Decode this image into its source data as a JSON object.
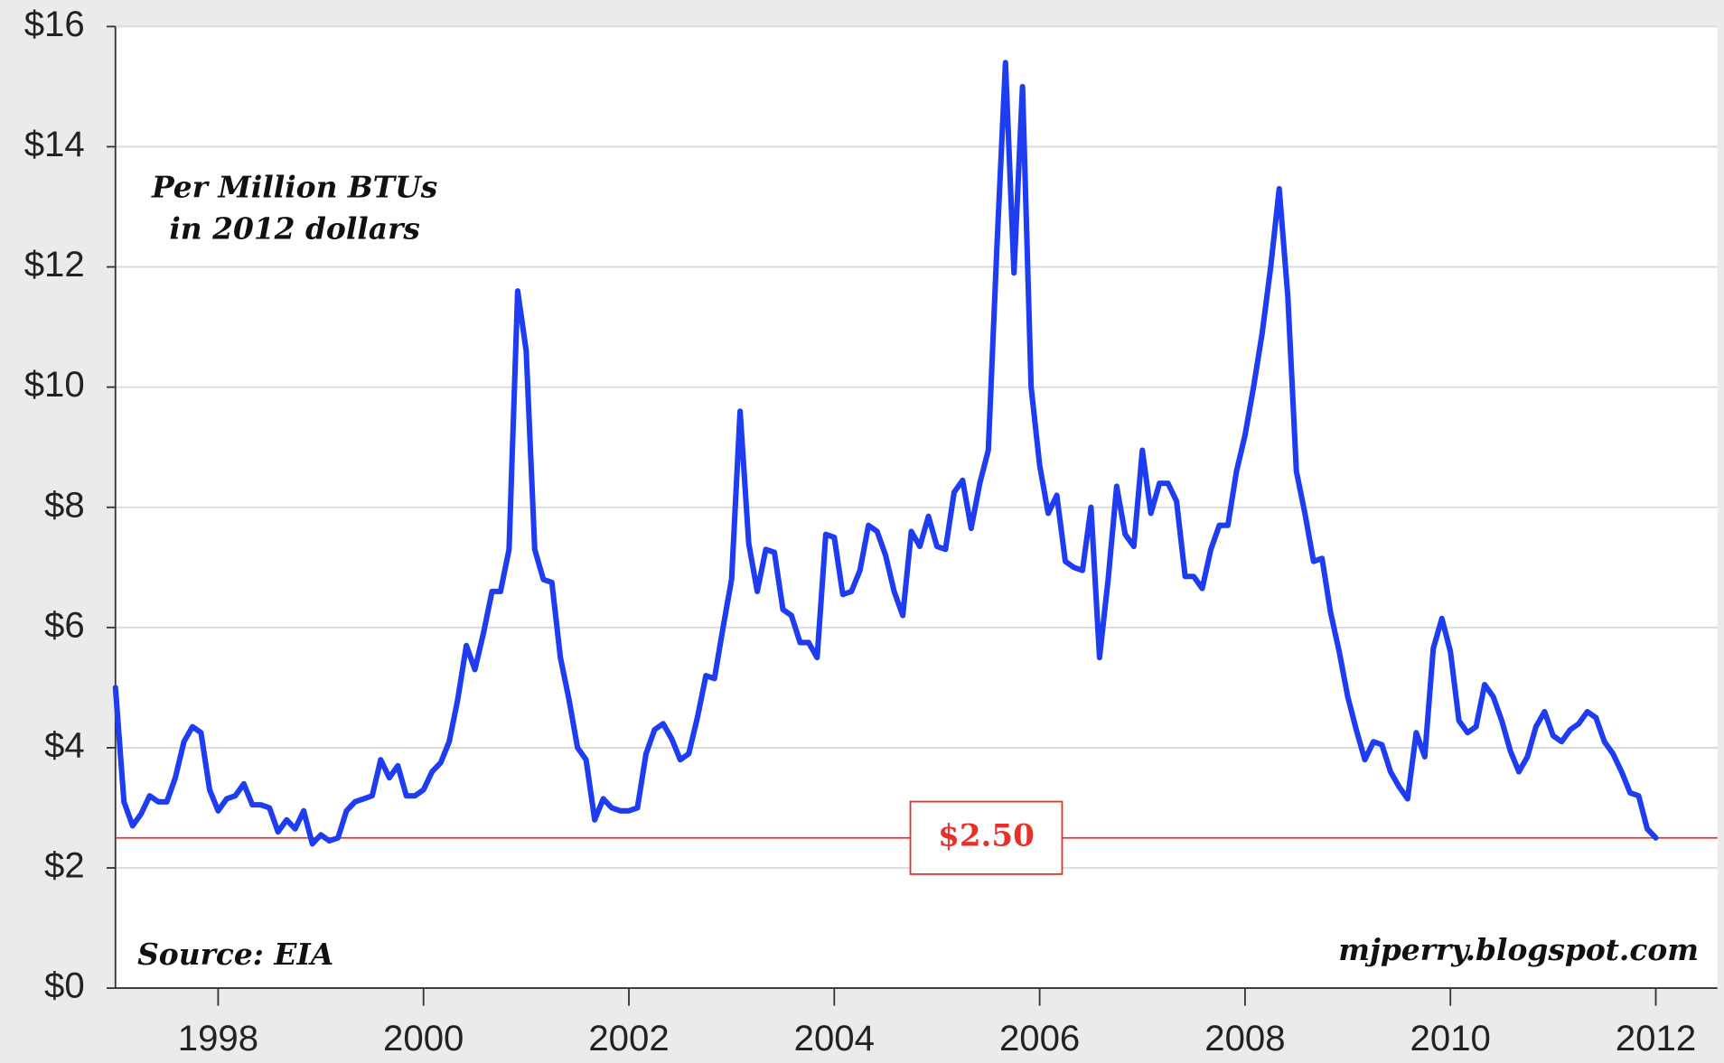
{
  "chart_data": {
    "type": "line",
    "annotations": [
      "Per Million BTUs",
      "in 2012 dollars",
      "Source: EIA",
      "mjperry.blogspot.com"
    ],
    "reference_line": {
      "value": 2.5,
      "label": "$2.50",
      "color": "#e8302a"
    },
    "x": [
      1997,
      1997.083,
      1997.167,
      1997.25,
      1997.333,
      1997.417,
      1997.5,
      1997.583,
      1997.667,
      1997.75,
      1997.833,
      1997.917,
      1998,
      1998.083,
      1998.167,
      1998.25,
      1998.333,
      1998.417,
      1998.5,
      1998.583,
      1998.667,
      1998.75,
      1998.833,
      1998.917,
      1999,
      1999.083,
      1999.167,
      1999.25,
      1999.333,
      1999.417,
      1999.5,
      1999.583,
      1999.667,
      1999.75,
      1999.833,
      1999.917,
      2000,
      2000.083,
      2000.167,
      2000.25,
      2000.333,
      2000.417,
      2000.5,
      2000.583,
      2000.667,
      2000.75,
      2000.833,
      2000.917,
      2001,
      2001.083,
      2001.167,
      2001.25,
      2001.333,
      2001.417,
      2001.5,
      2001.583,
      2001.667,
      2001.75,
      2001.833,
      2001.917,
      2002,
      2002.083,
      2002.167,
      2002.25,
      2002.333,
      2002.417,
      2002.5,
      2002.583,
      2002.667,
      2002.75,
      2002.833,
      2002.917,
      2003,
      2003.083,
      2003.167,
      2003.25,
      2003.333,
      2003.417,
      2003.5,
      2003.583,
      2003.667,
      2003.75,
      2003.833,
      2003.917,
      2004,
      2004.083,
      2004.167,
      2004.25,
      2004.333,
      2004.417,
      2004.5,
      2004.583,
      2004.667,
      2004.75,
      2004.833,
      2004.917,
      2005,
      2005.083,
      2005.167,
      2005.25,
      2005.333,
      2005.417,
      2005.5,
      2005.583,
      2005.667,
      2005.75,
      2005.833,
      2005.917,
      2006,
      2006.083,
      2006.167,
      2006.25,
      2006.333,
      2006.417,
      2006.5,
      2006.583,
      2006.667,
      2006.75,
      2006.833,
      2006.917,
      2007,
      2007.083,
      2007.167,
      2007.25,
      2007.333,
      2007.417,
      2007.5,
      2007.583,
      2007.667,
      2007.75,
      2007.833,
      2007.917,
      2008,
      2008.083,
      2008.167,
      2008.25,
      2008.333,
      2008.417,
      2008.5,
      2008.583,
      2008.667,
      2008.75,
      2008.833,
      2008.917,
      2009,
      2009.083,
      2009.167,
      2009.25,
      2009.333,
      2009.417,
      2009.5,
      2009.583,
      2009.667,
      2009.75,
      2009.833,
      2009.917,
      2010,
      2010.083,
      2010.167,
      2010.25,
      2010.333,
      2010.417,
      2010.5,
      2010.583,
      2010.667,
      2010.75,
      2010.833,
      2010.917,
      2011,
      2011.083,
      2011.167,
      2011.25,
      2011.333,
      2011.417,
      2011.5,
      2011.583,
      2011.667,
      2011.75,
      2011.833,
      2011.917,
      2012
    ],
    "series": [
      {
        "color": "#1e3cf0",
        "values": [
          5.0,
          3.1,
          2.7,
          2.9,
          3.2,
          3.1,
          3.1,
          3.5,
          4.1,
          4.35,
          4.25,
          3.3,
          2.95,
          3.15,
          3.2,
          3.4,
          3.05,
          3.05,
          3.0,
          2.6,
          2.8,
          2.65,
          2.95,
          2.4,
          2.55,
          2.45,
          2.5,
          2.95,
          3.1,
          3.15,
          3.2,
          3.8,
          3.5,
          3.7,
          3.2,
          3.2,
          3.3,
          3.6,
          3.75,
          4.1,
          4.8,
          5.7,
          5.3,
          5.9,
          6.6,
          6.6,
          7.3,
          11.6,
          10.6,
          7.3,
          6.8,
          6.75,
          5.5,
          4.8,
          4.0,
          3.8,
          2.8,
          3.15,
          3.0,
          2.95,
          2.95,
          3.0,
          3.9,
          4.3,
          4.4,
          4.15,
          3.8,
          3.9,
          4.5,
          5.2,
          5.15,
          6.0,
          6.8,
          9.6,
          7.4,
          6.6,
          7.3,
          7.25,
          6.3,
          6.2,
          5.75,
          5.75,
          5.5,
          7.55,
          7.5,
          6.55,
          6.6,
          6.95,
          7.7,
          7.6,
          7.2,
          6.6,
          6.2,
          7.6,
          7.35,
          7.85,
          7.35,
          7.3,
          8.25,
          8.45,
          7.65,
          8.4,
          8.95,
          12.3,
          15.4,
          11.9,
          15.0,
          10.0,
          8.7,
          7.9,
          8.2,
          7.1,
          7.0,
          6.95,
          8.0,
          5.5,
          6.8,
          8.35,
          7.55,
          7.35,
          8.95,
          7.9,
          8.4,
          8.4,
          8.1,
          6.85,
          6.85,
          6.65,
          7.3,
          7.7,
          7.7,
          8.6,
          9.2,
          10.0,
          10.9,
          12.0,
          13.3,
          11.5,
          8.6,
          7.9,
          7.1,
          7.15,
          6.25,
          5.6,
          4.85,
          4.3,
          3.8,
          4.1,
          4.05,
          3.6,
          3.35,
          3.15,
          4.25,
          3.85,
          5.65,
          6.15,
          5.6,
          4.45,
          4.25,
          4.35,
          5.05,
          4.85,
          4.45,
          3.95,
          3.6,
          3.85,
          4.35,
          4.6,
          4.2,
          4.1,
          4.3,
          4.4,
          4.6,
          4.5,
          4.1,
          3.9,
          3.6,
          3.25,
          3.2,
          2.65,
          2.5
        ]
      }
    ],
    "xlim": [
      1997,
      2012.6
    ],
    "xticks": [
      1998,
      2000,
      2002,
      2004,
      2006,
      2008,
      2010,
      2012
    ],
    "ylim": [
      0,
      16
    ],
    "yticks": [
      {
        "value": 0,
        "label": "$0"
      },
      {
        "value": 2,
        "label": "$2"
      },
      {
        "value": 4,
        "label": "$4"
      },
      {
        "value": 6,
        "label": "$6"
      },
      {
        "value": 8,
        "label": "$8"
      },
      {
        "value": 10,
        "label": "$10"
      },
      {
        "value": 12,
        "label": "$12"
      },
      {
        "value": 14,
        "label": "$14"
      },
      {
        "value": 16,
        "label": "$16"
      }
    ],
    "grid": true
  }
}
